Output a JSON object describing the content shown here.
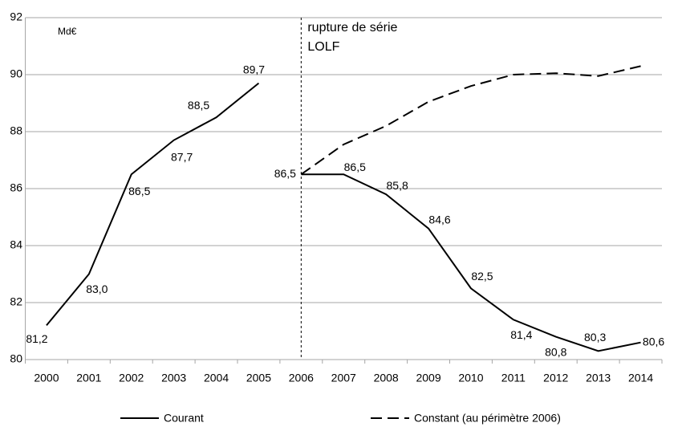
{
  "chart_data": {
    "type": "line",
    "unit_label": "Md€",
    "annotation": {
      "lines": [
        "rupture de série",
        "LOLF"
      ],
      "x": "2006"
    },
    "categories": [
      "2000",
      "2001",
      "2002",
      "2003",
      "2004",
      "2005",
      "2006",
      "2007",
      "2008",
      "2009",
      "2010",
      "2011",
      "2012",
      "2013",
      "2014"
    ],
    "series": [
      {
        "name": "Courant",
        "color": "#000000",
        "dash": "solid",
        "values": [
          81.2,
          83.0,
          86.5,
          87.7,
          88.5,
          89.7,
          86.5,
          86.5,
          85.8,
          84.6,
          82.5,
          81.4,
          80.8,
          80.3,
          80.6
        ],
        "value_labels": [
          "81,2",
          "83,0",
          "86,5",
          "87,7",
          "88,5",
          "89,7",
          "86,5",
          "86,5",
          "85,8",
          "84,6",
          "82,5",
          "81,4",
          "80,8",
          "80,3",
          "80,6"
        ]
      },
      {
        "name": "Constant (au périmètre 2006)",
        "color": "#000000",
        "dash": "dashed",
        "values": [
          null,
          null,
          null,
          null,
          null,
          null,
          86.5,
          87.55,
          88.2,
          89.05,
          89.6,
          90.0,
          90.05,
          89.95,
          90.3
        ]
      }
    ],
    "ylim": [
      80,
      92
    ],
    "yticks": [
      80,
      82,
      84,
      86,
      88,
      90,
      92
    ],
    "grid": true,
    "legend": "bottom"
  }
}
